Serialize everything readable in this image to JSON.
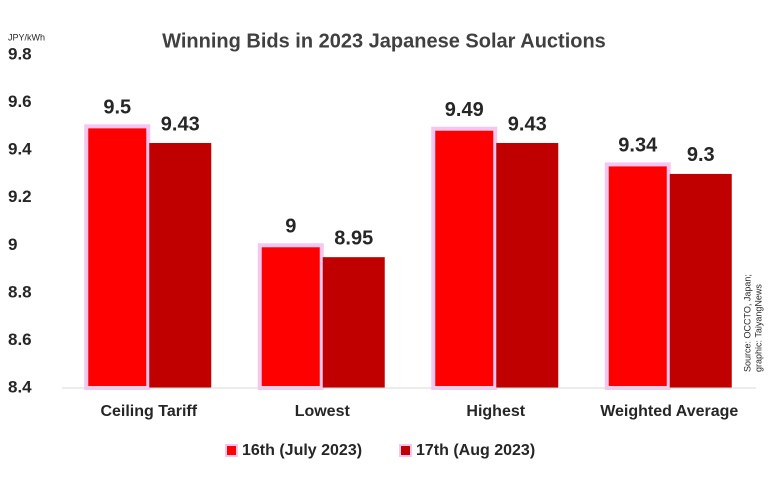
{
  "chart_data": {
    "type": "bar",
    "title": "Winning Bids in 2023 Japanese Solar Auctions",
    "y_unit": "JPY/kWh",
    "source": [
      "Source: OCCTO, Japan;",
      "graphic: TaiyangNews"
    ],
    "categories": [
      "Ceiling Tariff",
      "Lowest",
      "Highest",
      "Weighted Average"
    ],
    "series": [
      {
        "name": "16th (July 2023)",
        "color": "#ff0000",
        "values": [
          9.5,
          9,
          9.49,
          9.34
        ]
      },
      {
        "name": "17th (Aug 2023)",
        "color": "#c00000",
        "values": [
          9.43,
          8.95,
          9.43,
          9.3
        ]
      }
    ],
    "ylim": [
      8.4,
      9.8
    ],
    "yticks": [
      8.4,
      8.6,
      8.8,
      9,
      9.2,
      9.4,
      9.6,
      9.8
    ],
    "grid": false,
    "legend": "bottom"
  }
}
